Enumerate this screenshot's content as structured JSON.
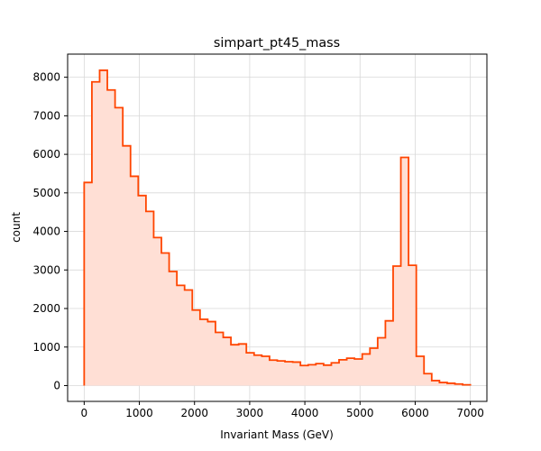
{
  "chart_data": {
    "type": "area",
    "style": "step-histogram",
    "title": "simpart_pt45_mass",
    "xlabel": "Invariant Mass (GeV)",
    "ylabel": "count",
    "xlim": [
      -300,
      7300
    ],
    "ylim": [
      -410,
      8600
    ],
    "grid": true,
    "colors": {
      "line": "#ff4500",
      "fill": "#ffdfd5",
      "grid": "#d8d8d8"
    },
    "x_ticks": [
      0,
      1000,
      2000,
      3000,
      4000,
      5000,
      6000,
      7000
    ],
    "y_ticks": [
      0,
      1000,
      2000,
      3000,
      4000,
      5000,
      6000,
      7000,
      8000
    ],
    "bin_edges": [
      0,
      140,
      280,
      420,
      560,
      700,
      840,
      980,
      1120,
      1260,
      1400,
      1540,
      1680,
      1820,
      1960,
      2100,
      2240,
      2380,
      2520,
      2660,
      2800,
      2940,
      3080,
      3220,
      3360,
      3500,
      3640,
      3780,
      3920,
      4060,
      4200,
      4340,
      4480,
      4620,
      4760,
      4900,
      5040,
      5180,
      5320,
      5460,
      5600,
      5740,
      5880,
      6020,
      6160,
      6300,
      6440,
      6580,
      6720,
      6860,
      7000
    ],
    "counts": [
      5270,
      7880,
      8180,
      7670,
      7210,
      6220,
      5430,
      4930,
      4520,
      3840,
      3440,
      2960,
      2600,
      2480,
      1960,
      1720,
      1660,
      1380,
      1250,
      1060,
      1080,
      850,
      790,
      760,
      660,
      640,
      620,
      610,
      520,
      540,
      570,
      530,
      590,
      670,
      710,
      690,
      820,
      970,
      1240,
      1680,
      3100,
      5920,
      3120,
      760,
      310,
      130,
      80,
      60,
      40,
      20
    ]
  }
}
